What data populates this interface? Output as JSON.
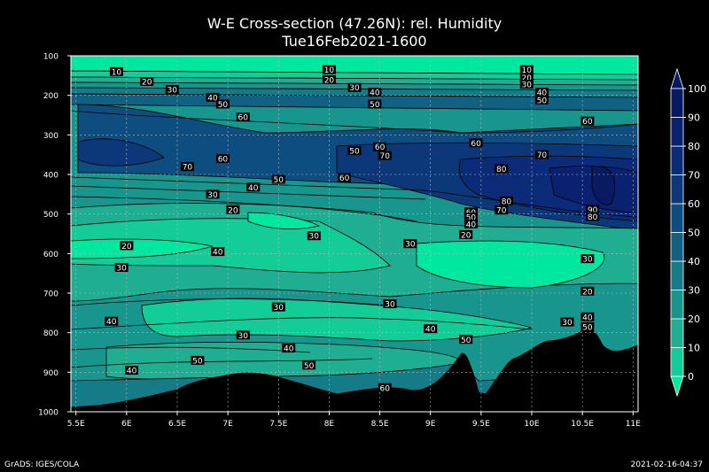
{
  "chart_data": {
    "type": "heatmap",
    "title": "W-E Cross-section (47.26N): rel. Humidity",
    "subtitle": "Tue16Feb2021-1600",
    "x_ticks": [
      "5.5E",
      "6E",
      "6.5E",
      "7E",
      "7.5E",
      "8E",
      "8.5E",
      "9E",
      "9.5E",
      "10E",
      "10.5E",
      "11E"
    ],
    "x_tick_values": [
      5.5,
      6,
      6.5,
      7,
      7.5,
      8,
      8.5,
      9,
      9.5,
      10,
      10.5,
      11
    ],
    "xlim": [
      5.45,
      11.05
    ],
    "y_ticks": [
      "100",
      "200",
      "300",
      "400",
      "500",
      "600",
      "700",
      "800",
      "900",
      "1000"
    ],
    "y_tick_values": [
      100,
      200,
      300,
      400,
      500,
      600,
      700,
      800,
      900,
      1000
    ],
    "ylim": [
      100,
      1000
    ],
    "colorbar": {
      "levels": [
        "0",
        "10",
        "20",
        "30",
        "40",
        "50",
        "60",
        "70",
        "80",
        "90",
        "100"
      ],
      "colors": [
        "#00e8a0",
        "#13cc98",
        "#1fae91",
        "#18958c",
        "#147b87",
        "#116282",
        "#0e4d7f",
        "#0c387a",
        "#0b2a78",
        "#0a2170",
        "#0a1a62"
      ]
    },
    "contour_labels": [
      {
        "x": 5.9,
        "y": 140,
        "v": "10"
      },
      {
        "x": 6.2,
        "y": 165,
        "v": "20"
      },
      {
        "x": 6.45,
        "y": 185,
        "v": "30"
      },
      {
        "x": 6.85,
        "y": 205,
        "v": "40"
      },
      {
        "x": 6.95,
        "y": 222,
        "v": "50"
      },
      {
        "x": 7.15,
        "y": 255,
        "v": "60"
      },
      {
        "x": 6.6,
        "y": 380,
        "v": "70"
      },
      {
        "x": 6.95,
        "y": 360,
        "v": "60"
      },
      {
        "x": 7.25,
        "y": 432,
        "v": "40"
      },
      {
        "x": 6.85,
        "y": 450,
        "v": "30"
      },
      {
        "x": 7.5,
        "y": 412,
        "v": "50"
      },
      {
        "x": 8.0,
        "y": 135,
        "v": "10"
      },
      {
        "x": 8.0,
        "y": 160,
        "v": "20"
      },
      {
        "x": 8.25,
        "y": 180,
        "v": "30"
      },
      {
        "x": 8.45,
        "y": 192,
        "v": "40"
      },
      {
        "x": 8.45,
        "y": 222,
        "v": "50"
      },
      {
        "x": 8.25,
        "y": 340,
        "v": "50"
      },
      {
        "x": 8.5,
        "y": 330,
        "v": "60"
      },
      {
        "x": 8.55,
        "y": 352,
        "v": "70"
      },
      {
        "x": 8.15,
        "y": 408,
        "v": "60"
      },
      {
        "x": 7.05,
        "y": 489,
        "v": "20"
      },
      {
        "x": 6.0,
        "y": 580,
        "v": "20"
      },
      {
        "x": 5.95,
        "y": 635,
        "v": "30"
      },
      {
        "x": 6.9,
        "y": 595,
        "v": "40"
      },
      {
        "x": 7.85,
        "y": 555,
        "v": "30"
      },
      {
        "x": 8.8,
        "y": 575,
        "v": "30"
      },
      {
        "x": 9.45,
        "y": 320,
        "v": "60"
      },
      {
        "x": 9.7,
        "y": 385,
        "v": "80"
      },
      {
        "x": 10.1,
        "y": 350,
        "v": "70"
      },
      {
        "x": 10.55,
        "y": 265,
        "v": "60"
      },
      {
        "x": 9.95,
        "y": 135,
        "v": "10"
      },
      {
        "x": 9.95,
        "y": 155,
        "v": "20"
      },
      {
        "x": 9.95,
        "y": 172,
        "v": "30"
      },
      {
        "x": 10.1,
        "y": 192,
        "v": "40"
      },
      {
        "x": 10.1,
        "y": 212,
        "v": "50"
      },
      {
        "x": 9.75,
        "y": 467,
        "v": "80"
      },
      {
        "x": 9.7,
        "y": 490,
        "v": "70"
      },
      {
        "x": 9.4,
        "y": 495,
        "v": "60"
      },
      {
        "x": 9.4,
        "y": 508,
        "v": "50"
      },
      {
        "x": 9.4,
        "y": 525,
        "v": "40"
      },
      {
        "x": 9.35,
        "y": 552,
        "v": "20"
      },
      {
        "x": 10.6,
        "y": 488,
        "v": "90"
      },
      {
        "x": 10.6,
        "y": 506,
        "v": "80"
      },
      {
        "x": 10.55,
        "y": 613,
        "v": "30"
      },
      {
        "x": 10.55,
        "y": 695,
        "v": "20"
      },
      {
        "x": 10.55,
        "y": 760,
        "v": "40"
      },
      {
        "x": 10.55,
        "y": 785,
        "v": "50"
      },
      {
        "x": 10.35,
        "y": 773,
        "v": "30"
      },
      {
        "x": 5.85,
        "y": 771,
        "v": "40"
      },
      {
        "x": 7.5,
        "y": 735,
        "v": "30"
      },
      {
        "x": 7.15,
        "y": 806,
        "v": "30"
      },
      {
        "x": 8.6,
        "y": 727,
        "v": "30"
      },
      {
        "x": 9.0,
        "y": 790,
        "v": "40"
      },
      {
        "x": 9.35,
        "y": 817,
        "v": "50"
      },
      {
        "x": 7.6,
        "y": 839,
        "v": "40"
      },
      {
        "x": 6.05,
        "y": 895,
        "v": "40"
      },
      {
        "x": 6.7,
        "y": 870,
        "v": "50"
      },
      {
        "x": 7.8,
        "y": 882,
        "v": "50"
      },
      {
        "x": 8.55,
        "y": 939,
        "v": "60"
      }
    ]
  },
  "footer": {
    "left": "GrADS: IGES/COLA",
    "right": "2021-02-16-04:37"
  }
}
